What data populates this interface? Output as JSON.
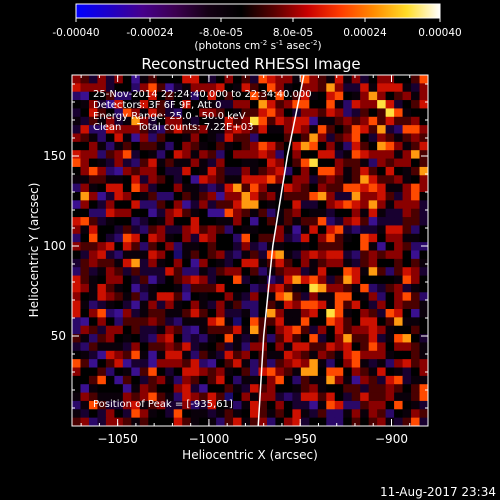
{
  "colorbar": {
    "ticks": [
      "-0.00040",
      "-0.00024",
      "-8.0e-05",
      "8.0e-05",
      "0.00024",
      "0.00040"
    ],
    "units_main": "(photons cm",
    "units_exp1": "-2",
    "units_mid": " s",
    "units_exp2": "-1",
    "units_mid2": " asec",
    "units_exp3": "-2",
    "units_end": ")"
  },
  "image": {
    "title": "Reconstructed RHESSI Image",
    "annotations": [
      "25-Nov-2014 22:24:40.000 to 22:34:40.000",
      "Detectors: 3F 6F 9F, Att 0",
      "Energy Range: 25.0 - 50.0 keV",
      "Clean     Total counts: 7.22E+03"
    ],
    "peak_label": "Position of Peak = [-935,61]",
    "timestamp": "11-Aug-2017 23:34"
  },
  "chart_data": {
    "type": "heatmap",
    "title": "Reconstructed RHESSI Image",
    "xlabel": "Heliocentric X (arcsec)",
    "ylabel": "Heliocentric Y (arcsec)",
    "xlim": [
      -1075,
      -880
    ],
    "ylim": [
      0,
      195
    ],
    "x_ticks": [
      -1050,
      -1000,
      -950,
      -900
    ],
    "x_tick_labels": [
      "−1050",
      "−1000",
      "−950",
      "−900"
    ],
    "y_ticks": [
      50,
      100,
      150
    ],
    "y_tick_labels": [
      "50",
      "100",
      "150"
    ],
    "color_range": [
      -0.0004,
      0.0004
    ],
    "colormap": [
      "#0000ff",
      "#1e00c8",
      "#46008c",
      "#3c0050",
      "#140014",
      "#000000",
      "#5a0000",
      "#c80000",
      "#ff3c00",
      "#ff8c00",
      "#ffdc28",
      "#ffffff"
    ],
    "limb_points": [
      [
        -973,
        0
      ],
      [
        -970,
        50
      ],
      [
        -965,
        100
      ],
      [
        -957,
        150
      ],
      [
        -948,
        195
      ]
    ],
    "peak_position": [
      -935,
      61
    ],
    "pixel_count": [
      42,
      42
    ]
  }
}
